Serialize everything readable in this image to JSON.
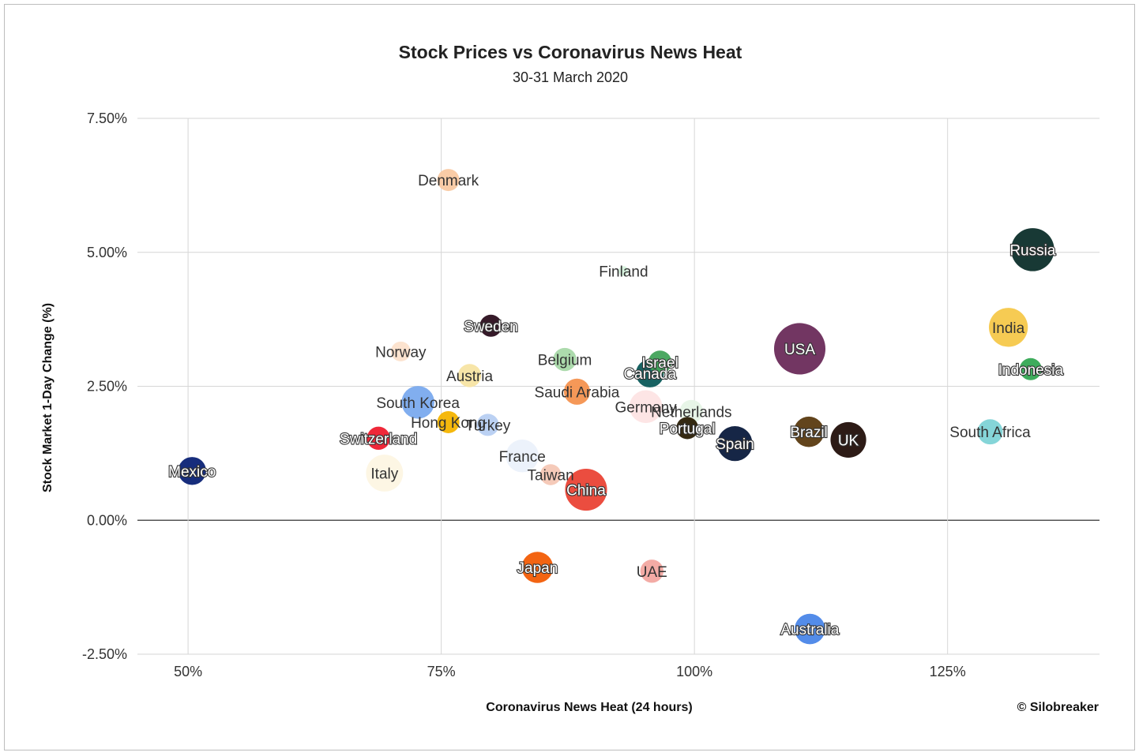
{
  "chart_data": {
    "type": "scatter",
    "title": "Stock Prices vs Coronavirus News Heat",
    "subtitle": "30-31 March 2020",
    "xlabel": "Coronavirus News Heat (24 hours)",
    "ylabel": "Stock Market 1-Day Change (%)",
    "credit": "© Silobreaker",
    "xlim": [
      0.45,
      1.4
    ],
    "ylim": [
      -2.5,
      7.5
    ],
    "x_ticks": [
      {
        "value": 0.5,
        "label": "50%"
      },
      {
        "value": 0.75,
        "label": "75%"
      },
      {
        "value": 1.0,
        "label": "100%"
      },
      {
        "value": 1.25,
        "label": "125%"
      }
    ],
    "y_ticks": [
      {
        "value": -2.5,
        "label": "-2.50%"
      },
      {
        "value": 0.0,
        "label": "0.00%"
      },
      {
        "value": 2.5,
        "label": "2.50%"
      },
      {
        "value": 5.0,
        "label": "5.00%"
      },
      {
        "value": 7.5,
        "label": "7.50%"
      }
    ],
    "grid": true,
    "points": [
      {
        "name": "Denmark",
        "x": 0.757,
        "y": 6.35,
        "size": 1.0,
        "color": "#f9c9a2"
      },
      {
        "name": "Finland",
        "x": 0.93,
        "y": 4.65,
        "size": 0.2,
        "color": "#d6f2dd"
      },
      {
        "name": "Russia",
        "x": 1.334,
        "y": 5.05,
        "size": 3.8,
        "color": "#0c2e2a"
      },
      {
        "name": "India",
        "x": 1.31,
        "y": 3.6,
        "size": 3.1,
        "color": "#f5c84a"
      },
      {
        "name": "Indonesia",
        "x": 1.332,
        "y": 2.82,
        "size": 1.0,
        "color": "#34a853"
      },
      {
        "name": "USA",
        "x": 1.104,
        "y": 3.2,
        "size": 5.4,
        "color": "#6a2b5a"
      },
      {
        "name": "Sweden",
        "x": 0.799,
        "y": 3.63,
        "size": 1.0,
        "color": "#2b0e1e"
      },
      {
        "name": "Norway",
        "x": 0.71,
        "y": 3.15,
        "size": 0.8,
        "color": "#fce1cc"
      },
      {
        "name": "Belgium",
        "x": 0.872,
        "y": 3.0,
        "size": 1.1,
        "color": "#a8d8a8"
      },
      {
        "name": "Israel",
        "x": 0.966,
        "y": 2.95,
        "size": 1.1,
        "color": "#42a35a"
      },
      {
        "name": "Canada",
        "x": 0.956,
        "y": 2.74,
        "size": 1.6,
        "color": "#0b5a5a"
      },
      {
        "name": "Austria",
        "x": 0.778,
        "y": 2.7,
        "size": 1.1,
        "color": "#f7e4a3"
      },
      {
        "name": "Saudi Arabia",
        "x": 0.884,
        "y": 2.4,
        "size": 1.4,
        "color": "#f4924f"
      },
      {
        "name": "Germany",
        "x": 0.952,
        "y": 2.12,
        "size": 2.2,
        "color": "#fde4e4"
      },
      {
        "name": "Netherlands",
        "x": 0.997,
        "y": 2.03,
        "size": 1.1,
        "color": "#e6f4e6"
      },
      {
        "name": "South Korea",
        "x": 0.727,
        "y": 2.2,
        "size": 2.2,
        "color": "#7aaaee"
      },
      {
        "name": "Hong Kong",
        "x": 0.757,
        "y": 1.83,
        "size": 1.0,
        "color": "#f4b400"
      },
      {
        "name": "Turkey",
        "x": 0.796,
        "y": 1.78,
        "size": 1.0,
        "color": "#b7cff2"
      },
      {
        "name": "Portugal",
        "x": 0.993,
        "y": 1.72,
        "size": 1.0,
        "color": "#2a1d05"
      },
      {
        "name": "Spain",
        "x": 1.04,
        "y": 1.43,
        "size": 2.5,
        "color": "#0a1a3c"
      },
      {
        "name": "Brazil",
        "x": 1.113,
        "y": 1.65,
        "size": 1.9,
        "color": "#5a3a10"
      },
      {
        "name": "UK",
        "x": 1.152,
        "y": 1.5,
        "size": 2.6,
        "color": "#220f0a"
      },
      {
        "name": "South Africa",
        "x": 1.292,
        "y": 1.65,
        "size": 1.3,
        "color": "#7ed3d6"
      },
      {
        "name": "Switzerland",
        "x": 0.688,
        "y": 1.53,
        "size": 1.1,
        "color": "#ee1c2e"
      },
      {
        "name": "Mexico",
        "x": 0.504,
        "y": 0.92,
        "size": 1.6,
        "color": "#0b2275"
      },
      {
        "name": "Italy",
        "x": 0.694,
        "y": 0.88,
        "size": 2.8,
        "color": "#fdf6e3"
      },
      {
        "name": "France",
        "x": 0.83,
        "y": 1.2,
        "size": 2.2,
        "color": "#ebf1fb"
      },
      {
        "name": "Taiwan",
        "x": 0.858,
        "y": 0.85,
        "size": 0.9,
        "color": "#f4c7b5"
      },
      {
        "name": "China",
        "x": 0.893,
        "y": 0.57,
        "size": 3.6,
        "color": "#ea4335"
      },
      {
        "name": "Japan",
        "x": 0.845,
        "y": -0.88,
        "size": 2.0,
        "color": "#f25c05"
      },
      {
        "name": "UAE",
        "x": 0.958,
        "y": -0.95,
        "size": 1.1,
        "color": "#f2a7a0"
      },
      {
        "name": "Australia",
        "x": 1.114,
        "y": -2.03,
        "size": 1.9,
        "color": "#4a86e8"
      }
    ]
  }
}
